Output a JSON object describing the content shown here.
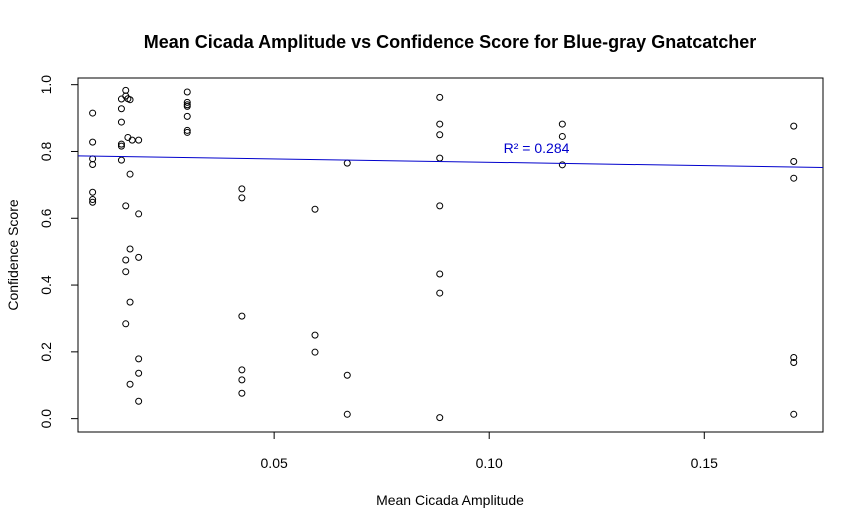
{
  "chart_data": {
    "type": "scatter",
    "title": "Mean Cicada Amplitude vs Confidence Score for Blue-gray Gnatcatcher",
    "xlabel": "Mean Cicada Amplitude",
    "ylabel": "Confidence Score",
    "xlim": [
      0.0044,
      0.1776
    ],
    "ylim": [
      -0.04,
      1.02
    ],
    "x_ticks": [
      0.05,
      0.1,
      0.15
    ],
    "x_tick_labels": [
      "0.05",
      "0.10",
      "0.15"
    ],
    "y_ticks": [
      0.0,
      0.2,
      0.4,
      0.6,
      0.8,
      1.0
    ],
    "y_tick_labels": [
      "0.0",
      "0.2",
      "0.4",
      "0.6",
      "0.8",
      "1.0"
    ],
    "grid": false,
    "point_color": "#000000",
    "fit_line": {
      "x": [
        0.0044,
        0.1776
      ],
      "y": [
        0.787,
        0.752
      ],
      "color": "#0000cc"
    },
    "annotation": {
      "text": "R² = 0.284",
      "x": 0.111,
      "y": 0.795,
      "color": "#0000cc"
    },
    "points": [
      [
        0.0078,
        0.915
      ],
      [
        0.0078,
        0.828
      ],
      [
        0.0078,
        0.778
      ],
      [
        0.0078,
        0.761
      ],
      [
        0.0078,
        0.678
      ],
      [
        0.0078,
        0.656
      ],
      [
        0.0078,
        0.648
      ],
      [
        0.0145,
        0.957
      ],
      [
        0.0145,
        0.928
      ],
      [
        0.0145,
        0.888
      ],
      [
        0.0145,
        0.822
      ],
      [
        0.0145,
        0.816
      ],
      [
        0.0145,
        0.774
      ],
      [
        0.0155,
        0.983
      ],
      [
        0.0155,
        0.966
      ],
      [
        0.016,
        0.958
      ],
      [
        0.0165,
        0.955
      ],
      [
        0.016,
        0.842
      ],
      [
        0.017,
        0.834
      ],
      [
        0.0155,
        0.637
      ],
      [
        0.0155,
        0.475
      ],
      [
        0.0155,
        0.44
      ],
      [
        0.0155,
        0.284
      ],
      [
        0.0165,
        0.732
      ],
      [
        0.0165,
        0.508
      ],
      [
        0.0165,
        0.349
      ],
      [
        0.0165,
        0.103
      ],
      [
        0.0185,
        0.834
      ],
      [
        0.0185,
        0.613
      ],
      [
        0.0185,
        0.483
      ],
      [
        0.0185,
        0.179
      ],
      [
        0.0185,
        0.136
      ],
      [
        0.0185,
        0.052
      ],
      [
        0.0298,
        0.978
      ],
      [
        0.0298,
        0.947
      ],
      [
        0.0298,
        0.94
      ],
      [
        0.0298,
        0.935
      ],
      [
        0.0298,
        0.905
      ],
      [
        0.0298,
        0.863
      ],
      [
        0.0298,
        0.857
      ],
      [
        0.0425,
        0.688
      ],
      [
        0.0425,
        0.661
      ],
      [
        0.0425,
        0.307
      ],
      [
        0.0425,
        0.146
      ],
      [
        0.0425,
        0.116
      ],
      [
        0.0425,
        0.076
      ],
      [
        0.0595,
        0.627
      ],
      [
        0.0595,
        0.25
      ],
      [
        0.0595,
        0.199
      ],
      [
        0.067,
        0.765
      ],
      [
        0.067,
        0.13
      ],
      [
        0.067,
        0.013
      ],
      [
        0.0885,
        0.962
      ],
      [
        0.0885,
        0.882
      ],
      [
        0.0885,
        0.85
      ],
      [
        0.0885,
        0.78
      ],
      [
        0.0885,
        0.637
      ],
      [
        0.0885,
        0.433
      ],
      [
        0.0885,
        0.376
      ],
      [
        0.0885,
        0.003
      ],
      [
        0.117,
        0.882
      ],
      [
        0.117,
        0.845
      ],
      [
        0.117,
        0.76
      ],
      [
        0.1708,
        0.876
      ],
      [
        0.1708,
        0.77
      ],
      [
        0.1708,
        0.72
      ],
      [
        0.1708,
        0.183
      ],
      [
        0.1708,
        0.168
      ],
      [
        0.1708,
        0.013
      ]
    ]
  }
}
